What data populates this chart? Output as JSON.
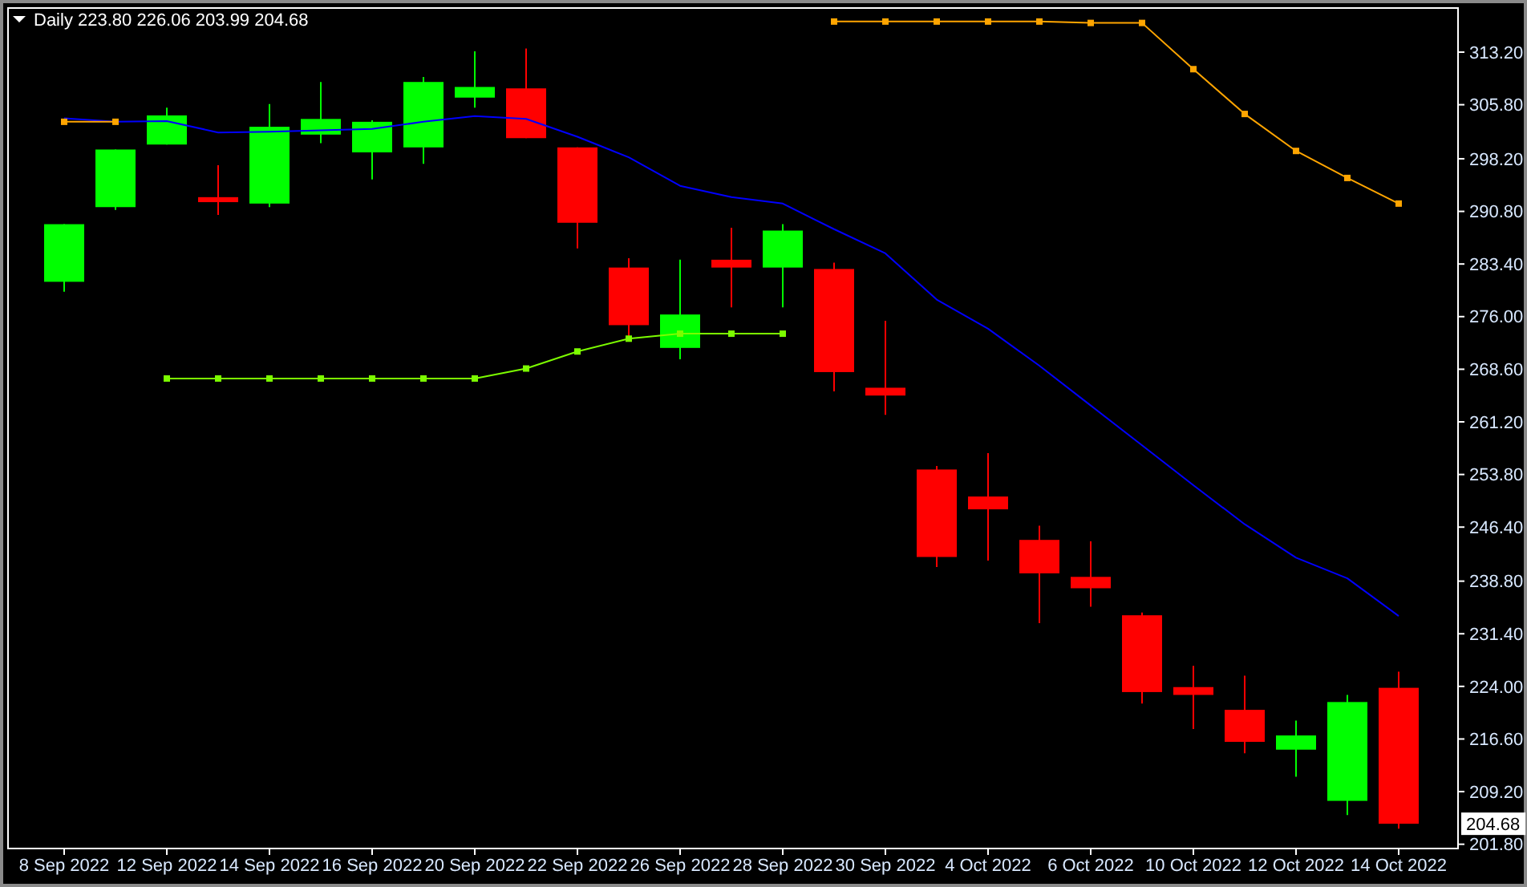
{
  "chart_data": {
    "type": "candlestick",
    "title": "Daily  223.80 226.06 203.99 204.68",
    "categories": [
      "8 Sep 2022",
      null,
      "12 Sep 2022",
      null,
      "14 Sep 2022",
      null,
      "16 Sep 2022",
      null,
      "20 Sep 2022",
      null,
      "22 Sep 2022",
      null,
      "26 Sep 2022",
      null,
      "28 Sep 2022",
      null,
      "30 Sep 2022",
      null,
      "4 Oct 2022",
      null,
      "6 Oct 2022",
      null,
      "10 Oct 2022",
      null,
      "12 Oct 2022",
      null,
      "14 Oct 2022"
    ],
    "ohlc": [
      [
        280.9,
        289.0,
        279.5,
        289.0
      ],
      [
        291.4,
        299.5,
        291.0,
        299.5
      ],
      [
        300.2,
        305.4,
        300.2,
        304.3
      ],
      [
        292.8,
        297.3,
        290.3,
        292.1
      ],
      [
        291.9,
        305.9,
        291.4,
        302.7
      ],
      [
        301.6,
        309.0,
        300.4,
        303.8
      ],
      [
        299.1,
        303.6,
        295.3,
        303.4
      ],
      [
        299.8,
        309.7,
        297.5,
        309.0
      ],
      [
        306.8,
        313.3,
        305.4,
        308.3
      ],
      [
        308.1,
        313.7,
        301.1,
        301.1
      ],
      [
        299.8,
        299.8,
        285.6,
        289.2
      ],
      [
        282.9,
        284.2,
        273.0,
        274.8
      ],
      [
        271.6,
        284.0,
        270.0,
        276.3
      ],
      [
        284.0,
        288.5,
        277.3,
        282.9
      ],
      [
        282.9,
        289.0,
        277.3,
        288.1
      ],
      [
        282.7,
        283.6,
        265.5,
        268.2
      ],
      [
        266.0,
        275.4,
        262.2,
        264.9
      ],
      [
        254.5,
        255.0,
        240.8,
        242.2
      ],
      [
        250.7,
        256.8,
        241.7,
        248.9
      ],
      [
        244.6,
        246.6,
        232.9,
        239.9
      ],
      [
        239.4,
        244.4,
        235.2,
        237.8
      ],
      [
        234.0,
        234.4,
        221.6,
        223.2
      ],
      [
        223.9,
        226.9,
        218.0,
        222.8
      ],
      [
        220.7,
        225.5,
        214.6,
        216.2
      ],
      [
        215.1,
        219.2,
        211.3,
        217.1
      ],
      [
        207.9,
        222.8,
        205.9,
        221.8
      ],
      [
        223.8,
        226.06,
        203.99,
        204.68
      ]
    ],
    "colors": [
      "#00ff00",
      "#00ff00",
      "#00ff00",
      "#ff0000",
      "#00ff00",
      "#00ff00",
      "#00ff00",
      "#00ff00",
      "#00ff00",
      "#ff0000",
      "#ff0000",
      "#ff0000",
      "#00ff00",
      "#ff0000",
      "#00ff00",
      "#ff0000",
      "#ff0000",
      "#ff0000",
      "#ff0000",
      "#ff0000",
      "#ff0000",
      "#ff0000",
      "#ff0000",
      "#ff0000",
      "#00ff00",
      "#00ff00",
      "#ff0000"
    ],
    "series": [
      {
        "type": "line",
        "color": "#0000ff",
        "marker": "none",
        "values": [
          303.9,
          303.4,
          303.5,
          301.9,
          302.0,
          302.2,
          302.4,
          303.4,
          304.2,
          303.8,
          301.3,
          298.4,
          294.4,
          292.8,
          291.9,
          288.3,
          284.9,
          278.4,
          274.3,
          269.1,
          263.5,
          257.9,
          252.3,
          246.8,
          242.1,
          239.2,
          233.9
        ]
      },
      {
        "type": "line",
        "color": "#ffa500",
        "marker": "square",
        "values": [
          303.4,
          303.4,
          null,
          null,
          null,
          null,
          null,
          null,
          null,
          null,
          null,
          null,
          null,
          null,
          null,
          317.5,
          317.5,
          317.5,
          317.5,
          317.5,
          317.3,
          317.3,
          310.8,
          304.5,
          299.3,
          295.5,
          291.9
        ]
      },
      {
        "type": "line",
        "color": "#7cfc00",
        "marker": "square",
        "values": [
          null,
          null,
          267.3,
          267.3,
          267.3,
          267.3,
          267.3,
          267.3,
          267.3,
          268.7,
          271.1,
          272.9,
          273.6,
          273.6,
          273.6,
          null,
          null,
          null,
          null,
          null,
          null,
          null,
          null,
          null,
          null,
          null,
          null
        ]
      }
    ],
    "ylim": [
      201.2,
      319.4
    ],
    "yticks": [
      {
        "value": 201.8,
        "label": "201.80"
      },
      {
        "value": 209.2,
        "label": "209.20"
      },
      {
        "value": 216.6,
        "label": "216.60"
      },
      {
        "value": 224.0,
        "label": "224.00"
      },
      {
        "value": 231.4,
        "label": "231.40"
      },
      {
        "value": 238.8,
        "label": "238.80"
      },
      {
        "value": 246.4,
        "label": "246.40"
      },
      {
        "value": 253.8,
        "label": "253.80"
      },
      {
        "value": 261.2,
        "label": "261.20"
      },
      {
        "value": 268.6,
        "label": "268.60"
      },
      {
        "value": 276.0,
        "label": "276.00"
      },
      {
        "value": 283.4,
        "label": "283.40"
      },
      {
        "value": 290.8,
        "label": "290.80"
      },
      {
        "value": 298.2,
        "label": "298.20"
      },
      {
        "value": 305.8,
        "label": "305.80"
      },
      {
        "value": 313.2,
        "label": "313.20"
      }
    ],
    "annotations": [
      {
        "text": "204.68",
        "y": 204.68
      }
    ]
  }
}
